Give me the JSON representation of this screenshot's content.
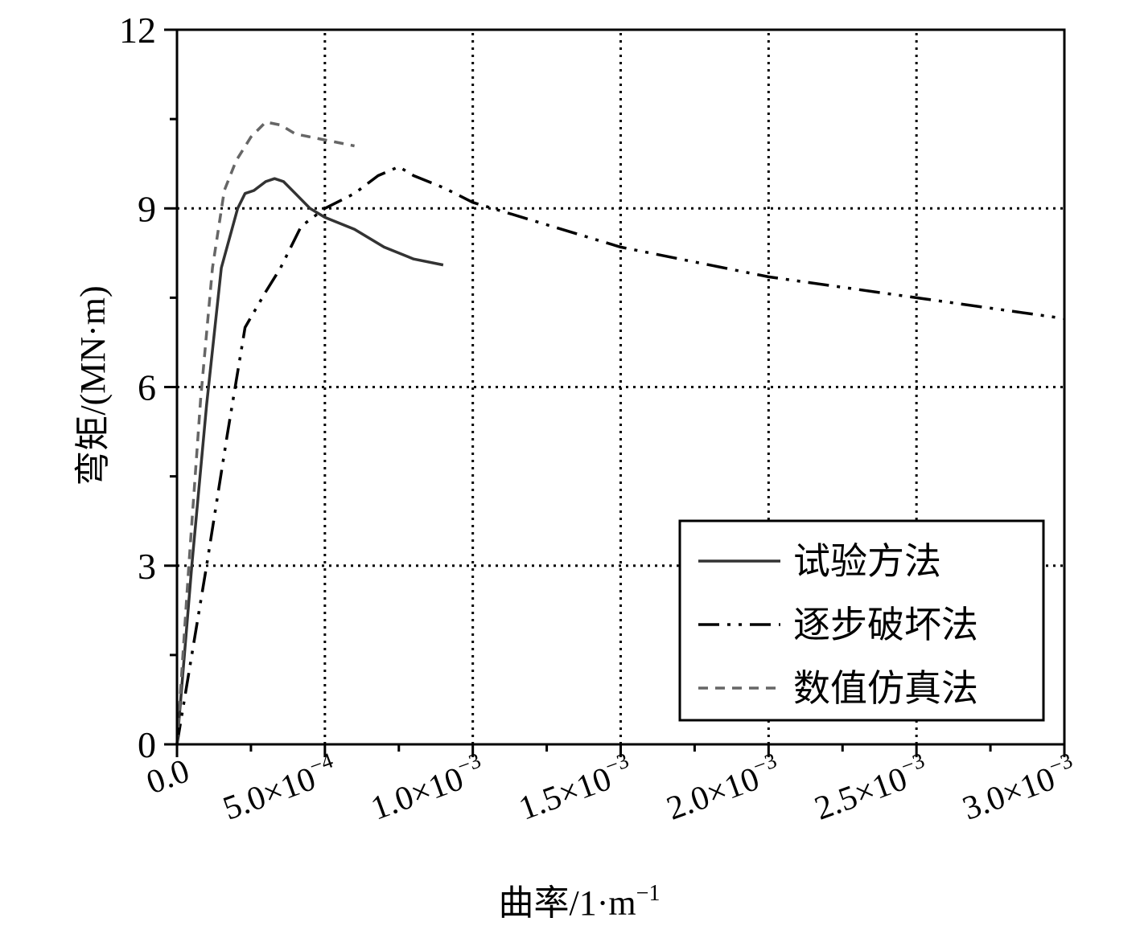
{
  "chart_data": {
    "type": "line",
    "xlabel": "曲率/1·m",
    "xlabel_exp": "−1",
    "ylabel": "弯矩/(MN·m)",
    "xlim": [
      0,
      0.003
    ],
    "ylim": [
      0,
      12
    ],
    "grid": true,
    "legend_position": "bottom-right",
    "xticks": [
      {
        "value": 0,
        "mant": "0.0",
        "exp": ""
      },
      {
        "value": 0.0005,
        "mant": "5.0×10",
        "exp": "−4"
      },
      {
        "value": 0.001,
        "mant": "1.0×10",
        "exp": "−3"
      },
      {
        "value": 0.0015,
        "mant": "1.5×10",
        "exp": "−3"
      },
      {
        "value": 0.002,
        "mant": "2.0×10",
        "exp": "−3"
      },
      {
        "value": 0.0025,
        "mant": "2.5×10",
        "exp": "−3"
      },
      {
        "value": 0.003,
        "mant": "3.0×10",
        "exp": "−3"
      }
    ],
    "yticks": [
      {
        "value": 0,
        "label": "0"
      },
      {
        "value": 3,
        "label": "3"
      },
      {
        "value": 6,
        "label": "6"
      },
      {
        "value": 9,
        "label": "9"
      },
      {
        "value": 12,
        "label": "12"
      }
    ],
    "series": [
      {
        "name": "试验方法",
        "color": "#333333",
        "dash": "solid",
        "points": [
          [
            0,
            0
          ],
          [
            5e-05,
            3.0
          ],
          [
            0.0001,
            5.7
          ],
          [
            0.00015,
            8.0
          ],
          [
            0.000205,
            9.0
          ],
          [
            0.00023,
            9.25
          ],
          [
            0.00026,
            9.3
          ],
          [
            0.0003,
            9.45
          ],
          [
            0.00033,
            9.5
          ],
          [
            0.00036,
            9.45
          ],
          [
            0.0004,
            9.25
          ],
          [
            0.00045,
            9.0
          ],
          [
            0.0005,
            8.85
          ],
          [
            0.0006,
            8.65
          ],
          [
            0.0007,
            8.35
          ],
          [
            0.0008,
            8.15
          ],
          [
            0.0009,
            8.05
          ]
        ]
      },
      {
        "name": "逐步破坏法",
        "color": "#000000",
        "dash": "dash-dot-dot",
        "points": [
          [
            0,
            0
          ],
          [
            0.0001,
            3.0
          ],
          [
            0.00017,
            5.2
          ],
          [
            0.00023,
            7.0
          ],
          [
            0.0003,
            7.6
          ],
          [
            0.00035,
            8.0
          ],
          [
            0.00042,
            8.7
          ],
          [
            0.0005,
            9.0
          ],
          [
            0.0006,
            9.25
          ],
          [
            0.00068,
            9.55
          ],
          [
            0.00075,
            9.7
          ],
          [
            0.0008,
            9.55
          ],
          [
            0.0009,
            9.35
          ],
          [
            0.001,
            9.1
          ],
          [
            0.0015,
            8.35
          ],
          [
            0.002,
            7.85
          ],
          [
            0.0025,
            7.5
          ],
          [
            0.003,
            7.15
          ]
        ]
      },
      {
        "name": "数值仿真法",
        "color": "#666666",
        "dash": "short-dash",
        "points": [
          [
            0,
            0
          ],
          [
            4e-05,
            3.0
          ],
          [
            8e-05,
            5.8
          ],
          [
            0.00012,
            8.0
          ],
          [
            0.00016,
            9.3
          ],
          [
            0.0002,
            9.8
          ],
          [
            0.00025,
            10.2
          ],
          [
            0.0003,
            10.45
          ],
          [
            0.00035,
            10.4
          ],
          [
            0.0004,
            10.25
          ],
          [
            0.0005,
            10.15
          ],
          [
            0.0006,
            10.05
          ]
        ]
      }
    ]
  }
}
